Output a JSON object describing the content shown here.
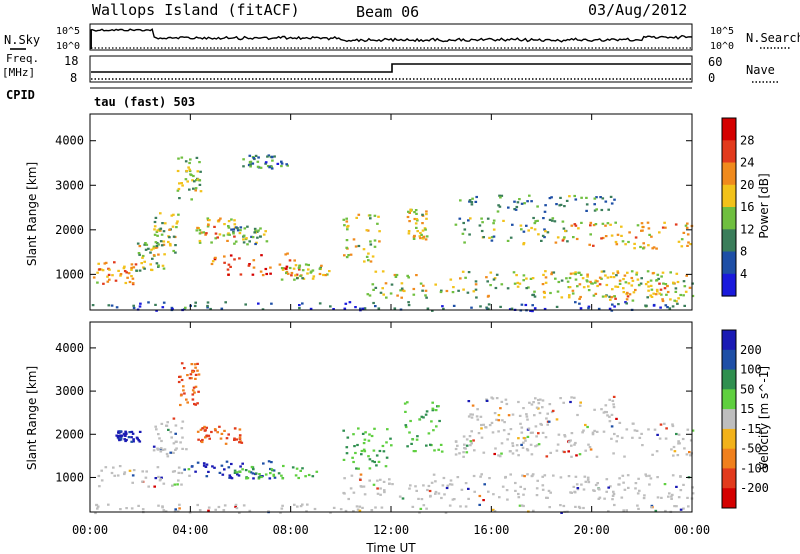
{
  "header": {
    "station": "Wallops Island (fitACF)",
    "beam": "Beam 06",
    "date": "03/Aug/2012"
  },
  "status_panels": {
    "nsky_label": "N.Sky",
    "nsearch_label": "N.Search",
    "freq_label": "Freq.",
    "freq_unit": "[MHz]",
    "nave_label": "Nave",
    "cpid_label": "CPID",
    "cpid_value": "tau (fast) 503",
    "noise_left_ticks": [
      "10^5",
      "10^0"
    ],
    "noise_right_ticks": [
      "10^5",
      "10^0"
    ],
    "freq_ticks": [
      "18",
      "8"
    ],
    "nave_ticks": [
      "60",
      "0"
    ]
  },
  "chart_data": [
    {
      "type": "heatmap",
      "title": "",
      "xlabel": "",
      "ylabel": "Slant Range [km]",
      "ylim": [
        200,
        4600
      ],
      "yticks": [
        "1000",
        "2000",
        "3000",
        "4000"
      ],
      "colorbar_label": "Power [dB]",
      "colorbar_ticks": [
        "4",
        "8",
        "12",
        "16",
        "20",
        "24",
        "28"
      ],
      "colorbar_range": [
        0,
        32
      ],
      "colors": [
        "#1a1adc",
        "#1e4fa6",
        "#3a7d5a",
        "#6fbf3f",
        "#f2c21a",
        "#f08a1c",
        "#e23a1c",
        "#d40000"
      ],
      "echo_regions": [
        {
          "t": [
            0.1,
            1.8
          ],
          "r": [
            800,
            1300
          ],
          "level": 0.65
        },
        {
          "t": [
            1.8,
            3.0
          ],
          "r": [
            1100,
            1800
          ],
          "level": 0.5
        },
        {
          "t": [
            2.5,
            3.5
          ],
          "r": [
            1500,
            2400
          ],
          "level": 0.45
        },
        {
          "t": [
            3.4,
            4.4
          ],
          "r": [
            2700,
            3700
          ],
          "level": 0.45
        },
        {
          "t": [
            4.2,
            5.8
          ],
          "r": [
            1700,
            2300
          ],
          "level": 0.6
        },
        {
          "t": [
            4.8,
            8.4
          ],
          "r": [
            1000,
            1500
          ],
          "level": 0.85
        },
        {
          "t": [
            5.5,
            7.0
          ],
          "r": [
            1700,
            2100
          ],
          "level": 0.35
        },
        {
          "t": [
            7.6,
            9.5
          ],
          "r": [
            900,
            1250
          ],
          "level": 0.5
        },
        {
          "t": [
            10.0,
            11.5
          ],
          "r": [
            1300,
            2400
          ],
          "level": 0.55
        },
        {
          "t": [
            11.0,
            24.0
          ],
          "r": [
            500,
            1100
          ],
          "level": 0.5
        },
        {
          "t": [
            12.6,
            13.4
          ],
          "r": [
            1800,
            2500
          ],
          "level": 0.55
        },
        {
          "t": [
            14.5,
            19.0
          ],
          "r": [
            1700,
            2300
          ],
          "level": 0.35
        },
        {
          "t": [
            14.5,
            21.0
          ],
          "r": [
            2400,
            2800
          ],
          "level": 0.3
        },
        {
          "t": [
            18.5,
            24.0
          ],
          "r": [
            1600,
            2200
          ],
          "level": 0.65
        },
        {
          "t": [
            19.0,
            24.0
          ],
          "r": [
            400,
            1100
          ],
          "level": 0.6
        },
        {
          "t": [
            6.0,
            8.0
          ],
          "r": [
            3400,
            3700
          ],
          "level": 0.25
        },
        {
          "t": [
            0.0,
            24.0
          ],
          "r": [
            200,
            400
          ],
          "level": 0.15
        }
      ]
    },
    {
      "type": "heatmap",
      "title": "",
      "xlabel": "Time UT",
      "ylabel": "Slant Range [km]",
      "ylim": [
        200,
        4600
      ],
      "yticks": [
        "1000",
        "2000",
        "3000",
        "4000"
      ],
      "xticks": [
        "00:00",
        "04:00",
        "08:00",
        "12:00",
        "16:00",
        "20:00",
        "00:00"
      ],
      "xlim_hours": [
        0,
        24
      ],
      "colorbar_label": "Velocity [m s^-1]",
      "colorbar_ticks": [
        "200",
        "100",
        "50",
        "15",
        "-15",
        "-50",
        "-100",
        "-200"
      ],
      "colors": [
        "#1a1ab4",
        "#1e4fa6",
        "#2f8f4f",
        "#5fcf3f",
        "#bebebe",
        "#f2b21a",
        "#f0801c",
        "#e23a1c",
        "#d40000"
      ],
      "echo_regions": [
        {
          "t": [
            0.1,
            4.0
          ],
          "r": [
            800,
            1300
          ],
          "kind": "ground"
        },
        {
          "t": [
            1.0,
            2.0
          ],
          "r": [
            1850,
            2100
          ],
          "kind": "positive"
        },
        {
          "t": [
            2.5,
            3.8
          ],
          "r": [
            1500,
            2400
          ],
          "kind": "ground"
        },
        {
          "t": [
            3.5,
            4.3
          ],
          "r": [
            2700,
            3700
          ],
          "kind": "negative"
        },
        {
          "t": [
            4.2,
            6.0
          ],
          "r": [
            1800,
            2200
          ],
          "kind": "negative"
        },
        {
          "t": [
            4.0,
            7.5
          ],
          "r": [
            1000,
            1400
          ],
          "kind": "positive"
        },
        {
          "t": [
            5.5,
            9.0
          ],
          "r": [
            1000,
            1300
          ],
          "kind": "slow-positive"
        },
        {
          "t": [
            10.0,
            12.0
          ],
          "r": [
            1200,
            2200
          ],
          "kind": "slow-positive"
        },
        {
          "t": [
            10.0,
            24.0
          ],
          "r": [
            500,
            1100
          ],
          "kind": "ground"
        },
        {
          "t": [
            12.5,
            14.0
          ],
          "r": [
            1600,
            2800
          ],
          "kind": "slow-positive"
        },
        {
          "t": [
            14.5,
            24.0
          ],
          "r": [
            1500,
            2300
          ],
          "kind": "ground"
        },
        {
          "t": [
            15.0,
            21.0
          ],
          "r": [
            2300,
            2900
          ],
          "kind": "ground"
        },
        {
          "t": [
            0.0,
            24.0
          ],
          "r": [
            200,
            400
          ],
          "kind": "ground"
        }
      ]
    }
  ]
}
